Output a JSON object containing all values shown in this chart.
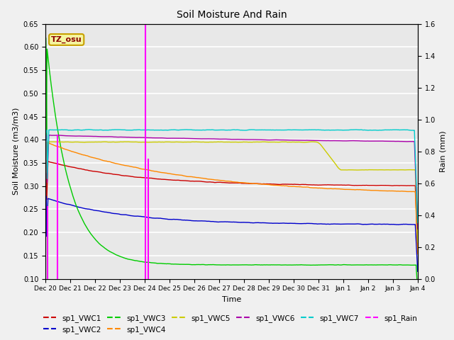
{
  "title": "Soil Moisture And Rain",
  "xlabel": "Time",
  "ylabel_left": "Soil Moisture (m3/m3)",
  "ylabel_right": "Rain (mm)",
  "ylim_left": [
    0.1,
    0.65
  ],
  "ylim_right": [
    0.0,
    1.6
  ],
  "background_color": "#f0f0f0",
  "plot_bg_color": "#e8e8e8",
  "station_label": "TZ_osu",
  "station_label_color": "#8b0000",
  "station_label_bg": "#f5f5a0",
  "station_label_border": "#c8a000",
  "x_tick_labels": [
    "Dec 20",
    "Dec 21",
    "Dec 22",
    "Dec 23",
    "Dec 24",
    "Dec 25",
    "Dec 26",
    "Dec 27",
    "Dec 28",
    "Dec 29",
    "Dec 30",
    "Dec 31",
    "Jan 1",
    "Jan 2",
    "Jan 3",
    "Jan 4"
  ],
  "colors": {
    "VWC1": "#cc0000",
    "VWC2": "#0000cc",
    "VWC3": "#00cc00",
    "VWC4": "#ff8800",
    "VWC5": "#cccc00",
    "VWC6": "#aa00aa",
    "VWC7": "#00cccc",
    "Rain": "#ff00ff"
  },
  "rain_spikes": [
    {
      "t": 0.08,
      "val": 0.45
    },
    {
      "t": 0.5,
      "val": 0.9
    },
    {
      "t": 4.02,
      "val": 1.6
    },
    {
      "t": 4.15,
      "val": 0.75
    }
  ],
  "n_days": 15,
  "n_points": 2160
}
